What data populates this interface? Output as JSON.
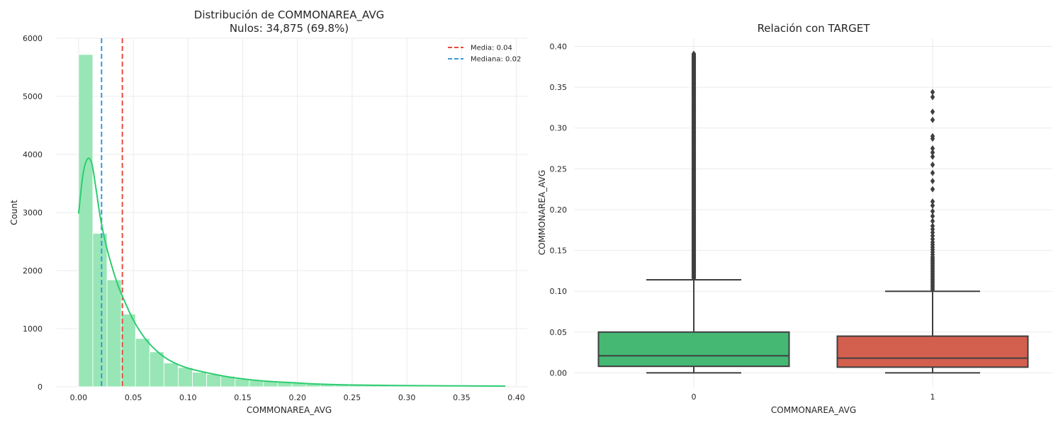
{
  "chart_data": [
    {
      "type": "histogram",
      "title_line1": "Distribución de COMMONAREA_AVG",
      "title_line2": "Nulos: 34,875 (69.8%)",
      "xlabel": "COMMONAREA_AVG",
      "ylabel": "Count",
      "xlim": [
        -0.02,
        0.41
      ],
      "ylim": [
        0,
        6000
      ],
      "xticks": [
        0.0,
        0.05,
        0.1,
        0.15,
        0.2,
        0.25,
        0.3,
        0.35,
        0.4
      ],
      "xtick_labels": [
        "0.00",
        "0.05",
        "0.10",
        "0.15",
        "0.20",
        "0.25",
        "0.30",
        "0.35",
        "0.40"
      ],
      "yticks": [
        0,
        1000,
        2000,
        3000,
        4000,
        5000,
        6000
      ],
      "ytick_labels": [
        "0",
        "1000",
        "2000",
        "3000",
        "4000",
        "5000",
        "6000"
      ],
      "grid": true,
      "bin_width": 0.013,
      "bins_start": 0.0,
      "counts": [
        5720,
        2640,
        1840,
        1250,
        830,
        600,
        410,
        330,
        250,
        215,
        180,
        135,
        110,
        95,
        85,
        70,
        60,
        45,
        40,
        30,
        25,
        22,
        18,
        15,
        12,
        12,
        10,
        8,
        6,
        5
      ],
      "bar_color": "#98e6b6",
      "kde": {
        "color": "#2ecc71",
        "x": [
          0.0,
          0.004,
          0.008,
          0.012,
          0.016,
          0.02,
          0.025,
          0.03,
          0.035,
          0.04,
          0.05,
          0.06,
          0.07,
          0.08,
          0.09,
          0.1,
          0.12,
          0.14,
          0.16,
          0.18,
          0.2,
          0.22,
          0.25,
          0.3,
          0.35,
          0.39
        ],
        "y": [
          2980,
          3650,
          3920,
          3850,
          3400,
          2900,
          2450,
          2100,
          1800,
          1560,
          1150,
          850,
          640,
          490,
          390,
          320,
          230,
          160,
          115,
          85,
          65,
          45,
          30,
          20,
          15,
          10
        ]
      },
      "lines": [
        {
          "label": "Media: 0.04",
          "x": 0.04,
          "color": "#e74c3c"
        },
        {
          "label": "Mediana: 0.02",
          "x": 0.021,
          "color": "#3498db"
        }
      ],
      "legend_position": "top-right"
    },
    {
      "type": "boxplot",
      "title": "Relación con TARGET",
      "xlabel": "COMMONAREA_AVG",
      "ylabel": "COMMONAREA_AVG",
      "ylim": [
        -0.017,
        0.41
      ],
      "yticks": [
        0.0,
        0.05,
        0.1,
        0.15,
        0.2,
        0.25,
        0.3,
        0.35,
        0.4
      ],
      "ytick_labels": [
        "0.00",
        "0.05",
        "0.10",
        "0.15",
        "0.20",
        "0.25",
        "0.30",
        "0.35",
        "0.40"
      ],
      "grid": true,
      "categories": [
        "0",
        "1"
      ],
      "boxes": [
        {
          "category": "0",
          "color": "#45b874",
          "whisker_low": 0.0,
          "q1": 0.008,
          "median": 0.021,
          "q3": 0.05,
          "whisker_high": 0.114,
          "outliers": [
            0.116,
            0.117,
            0.118,
            0.119,
            0.12,
            0.121,
            0.122,
            0.123,
            0.124,
            0.125,
            0.126,
            0.127,
            0.128,
            0.129,
            0.13,
            0.131,
            0.132,
            0.133,
            0.134,
            0.135,
            0.136,
            0.137,
            0.138,
            0.139,
            0.14,
            0.141,
            0.142,
            0.143,
            0.144,
            0.145,
            0.146,
            0.147,
            0.148,
            0.149,
            0.15,
            0.151,
            0.152,
            0.153,
            0.154,
            0.155,
            0.156,
            0.157,
            0.158,
            0.159,
            0.16,
            0.161,
            0.162,
            0.163,
            0.164,
            0.165,
            0.166,
            0.167,
            0.168,
            0.169,
            0.17,
            0.171,
            0.172,
            0.173,
            0.174,
            0.175,
            0.176,
            0.177,
            0.178,
            0.179,
            0.18,
            0.181,
            0.182,
            0.183,
            0.184,
            0.185,
            0.186,
            0.187,
            0.188,
            0.189,
            0.19,
            0.191,
            0.192,
            0.193,
            0.194,
            0.195,
            0.196,
            0.197,
            0.198,
            0.199,
            0.2,
            0.201,
            0.202,
            0.203,
            0.204,
            0.205,
            0.206,
            0.207,
            0.208,
            0.209,
            0.21,
            0.211,
            0.212,
            0.213,
            0.214,
            0.215,
            0.216,
            0.217,
            0.218,
            0.219,
            0.22,
            0.221,
            0.222,
            0.223,
            0.224,
            0.225,
            0.226,
            0.227,
            0.228,
            0.229,
            0.23,
            0.231,
            0.232,
            0.233,
            0.234,
            0.235,
            0.236,
            0.237,
            0.238,
            0.239,
            0.24,
            0.241,
            0.242,
            0.243,
            0.244,
            0.245,
            0.246,
            0.247,
            0.248,
            0.249,
            0.25,
            0.251,
            0.252,
            0.253,
            0.254,
            0.255,
            0.256,
            0.257,
            0.258,
            0.259,
            0.26,
            0.261,
            0.262,
            0.263,
            0.264,
            0.265,
            0.266,
            0.267,
            0.268,
            0.269,
            0.27,
            0.271,
            0.272,
            0.273,
            0.274,
            0.275,
            0.276,
            0.277,
            0.278,
            0.279,
            0.28,
            0.281,
            0.282,
            0.283,
            0.284,
            0.285,
            0.286,
            0.287,
            0.288,
            0.289,
            0.29,
            0.291,
            0.292,
            0.293,
            0.294,
            0.295,
            0.296,
            0.297,
            0.298,
            0.299,
            0.3,
            0.301,
            0.302,
            0.303,
            0.304,
            0.305,
            0.306,
            0.307,
            0.308,
            0.309,
            0.31,
            0.311,
            0.312,
            0.313,
            0.314,
            0.315,
            0.316,
            0.317,
            0.318,
            0.319,
            0.32,
            0.321,
            0.322,
            0.323,
            0.324,
            0.325,
            0.326,
            0.327,
            0.328,
            0.329,
            0.33,
            0.331,
            0.332,
            0.333,
            0.334,
            0.335,
            0.336,
            0.337,
            0.338,
            0.339,
            0.34,
            0.341,
            0.342,
            0.343,
            0.344,
            0.345,
            0.346,
            0.347,
            0.348,
            0.349,
            0.35,
            0.351,
            0.352,
            0.353,
            0.354,
            0.355,
            0.356,
            0.357,
            0.358,
            0.359,
            0.36,
            0.361,
            0.362,
            0.363,
            0.364,
            0.365,
            0.366,
            0.367,
            0.368,
            0.369,
            0.37,
            0.371,
            0.372,
            0.373,
            0.374,
            0.375,
            0.376,
            0.377,
            0.378,
            0.379,
            0.38,
            0.381,
            0.382,
            0.383,
            0.384,
            0.385,
            0.386,
            0.387,
            0.388,
            0.389,
            0.39,
            0.391
          ]
        },
        {
          "category": "1",
          "color": "#d35f4f",
          "whisker_low": 0.0,
          "q1": 0.007,
          "median": 0.018,
          "q3": 0.045,
          "whisker_high": 0.1,
          "outliers": [
            0.102,
            0.104,
            0.106,
            0.108,
            0.11,
            0.112,
            0.114,
            0.116,
            0.118,
            0.12,
            0.122,
            0.124,
            0.126,
            0.128,
            0.13,
            0.132,
            0.134,
            0.136,
            0.138,
            0.14,
            0.142,
            0.145,
            0.148,
            0.151,
            0.154,
            0.157,
            0.16,
            0.164,
            0.168,
            0.172,
            0.176,
            0.18,
            0.186,
            0.192,
            0.198,
            0.205,
            0.21,
            0.225,
            0.235,
            0.245,
            0.255,
            0.265,
            0.27,
            0.275,
            0.287,
            0.29,
            0.31,
            0.32,
            0.338,
            0.344
          ]
        }
      ]
    }
  ]
}
